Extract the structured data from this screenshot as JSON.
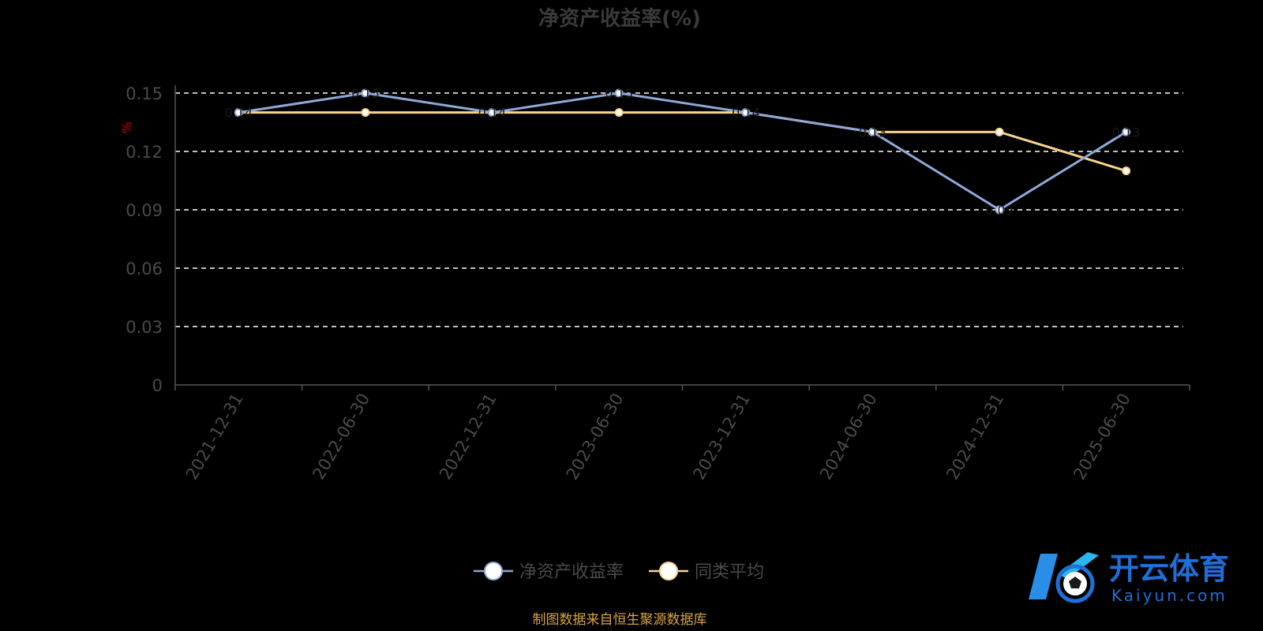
{
  "chart_data": {
    "type": "line",
    "title": "净资产收益率(%)",
    "ylabel": "%",
    "xlabel": "",
    "ylim": [
      0,
      0.15
    ],
    "yticks": [
      "0",
      "0.03",
      "0.06",
      "0.09",
      "0.12",
      "0.15"
    ],
    "ytick_values": [
      0,
      0.03,
      0.06,
      0.09,
      0.12,
      0.15
    ],
    "grid": true,
    "legend_position": "bottom",
    "categories": [
      "2021-12-31",
      "2022-06-30",
      "2022-12-31",
      "2023-06-30",
      "2023-12-31",
      "2024-06-30",
      "2024-12-31",
      "2025-06-30"
    ],
    "series": [
      {
        "name": "净资产收益率",
        "color": "#8fa8d8",
        "values": [
          0.14,
          0.15,
          0.14,
          0.15,
          0.14,
          0.13,
          0.09,
          0.13
        ]
      },
      {
        "name": "同类平均",
        "color": "#fbd38d",
        "values": [
          0.14,
          0.14,
          0.14,
          0.14,
          0.14,
          0.13,
          0.13,
          0.11
        ]
      }
    ]
  },
  "source": "制图数据来自恒生聚源数据库",
  "watermark": {
    "cn": "开云体育",
    "en": "Kaiyun.com"
  },
  "colors": {
    "background": "#000000",
    "grid": "#ffffff",
    "axis": "#555555",
    "accent_blue": "#1f6fd8"
  }
}
